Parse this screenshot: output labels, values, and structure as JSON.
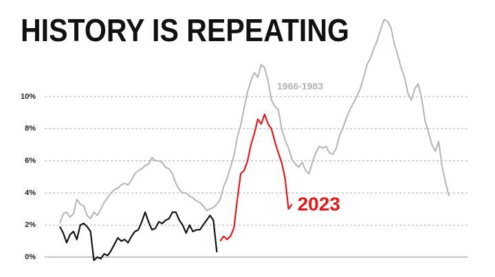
{
  "chart_data": {
    "type": "line",
    "title": "HISTORY IS REPEATING",
    "series": [
      {
        "name": "1966-1983",
        "color": "#b3b3b3",
        "values": [
          2.1,
          2.7,
          2.8,
          2.5,
          2.7,
          3.6,
          3.3,
          3.2,
          2.6,
          2.4,
          2.8,
          2.6,
          3.0,
          3.4,
          3.7,
          4.0,
          4.2,
          4.3,
          4.5,
          4.6,
          4.5,
          4.8,
          5.2,
          5.4,
          5.5,
          5.7,
          5.8,
          6.2,
          6.0,
          6.0,
          5.9,
          5.6,
          5.5,
          5.2,
          4.6,
          4.2,
          4.0,
          4.0,
          3.8,
          3.7,
          3.5,
          3.4,
          3.2,
          2.9,
          3.0,
          3.1,
          3.3,
          3.6,
          4.4,
          4.9,
          5.6,
          6.3,
          7.5,
          8.2,
          9.3,
          10.3,
          11.0,
          11.5,
          11.2,
          12.0,
          11.8,
          11.0,
          9.8,
          9.4,
          9.2,
          8.0,
          7.3,
          6.8,
          6.1,
          5.8,
          5.6,
          5.9,
          5.4,
          5.2,
          5.9,
          6.5,
          6.9,
          6.8,
          6.9,
          6.5,
          6.4,
          6.8,
          7.6,
          8.1,
          8.7,
          9.2,
          9.6,
          10.0,
          10.5,
          11.2,
          12.0,
          12.4,
          13.0,
          13.5,
          14.2,
          14.8,
          14.7,
          14.3,
          13.3,
          12.6,
          11.8,
          11.2,
          10.2,
          9.8,
          10.5,
          10.8,
          9.9,
          8.5,
          7.8,
          7.0,
          6.6,
          7.2,
          5.6,
          4.7,
          3.8
        ]
      },
      {
        "color": "#111111",
        "values": [
          1.9,
          1.5,
          0.9,
          1.4,
          1.6,
          1.1,
          2.0,
          2.1,
          1.9,
          1.6,
          -0.2,
          0.0,
          -0.1,
          0.2,
          0.1,
          0.4,
          0.8,
          1.2,
          1.0,
          1.1,
          0.9,
          1.3,
          1.6,
          1.7,
          2.2,
          2.8,
          2.2,
          1.7,
          1.8,
          2.2,
          2.1,
          2.3,
          2.4,
          2.8,
          2.8,
          2.3,
          2.0,
          1.5,
          2.0,
          1.6,
          1.7,
          1.7,
          2.0,
          2.3,
          2.6,
          2.3,
          0.3
        ]
      },
      {
        "name": "2023",
        "color": "#e0191b",
        "values": [
          null,
          null,
          null,
          null,
          null,
          null,
          null,
          null,
          null,
          null,
          null,
          null,
          null,
          null,
          null,
          null,
          null,
          null,
          null,
          null,
          null,
          null,
          null,
          null,
          null,
          null,
          null,
          null,
          null,
          null,
          null,
          null,
          null,
          null,
          null,
          null,
          null,
          null,
          null,
          null,
          null,
          null,
          null,
          null,
          null,
          null,
          null,
          1.0,
          1.3,
          1.1,
          1.3,
          1.8,
          3.6,
          5.2,
          5.4,
          6.0,
          7.0,
          7.7,
          8.6,
          8.3,
          8.9,
          8.3,
          8.0,
          7.2,
          6.5,
          5.9,
          4.9,
          3.0,
          3.3
        ]
      }
    ],
    "ylim": [
      0,
      16
    ],
    "yticks": [
      {
        "value": 0,
        "label": "0%"
      },
      {
        "value": 2,
        "label": "2%"
      },
      {
        "value": 4,
        "label": "4%"
      },
      {
        "value": 6,
        "label": "6%"
      },
      {
        "value": 8,
        "label": "8%"
      },
      {
        "value": 10,
        "label": "10%"
      }
    ],
    "grid": true
  }
}
